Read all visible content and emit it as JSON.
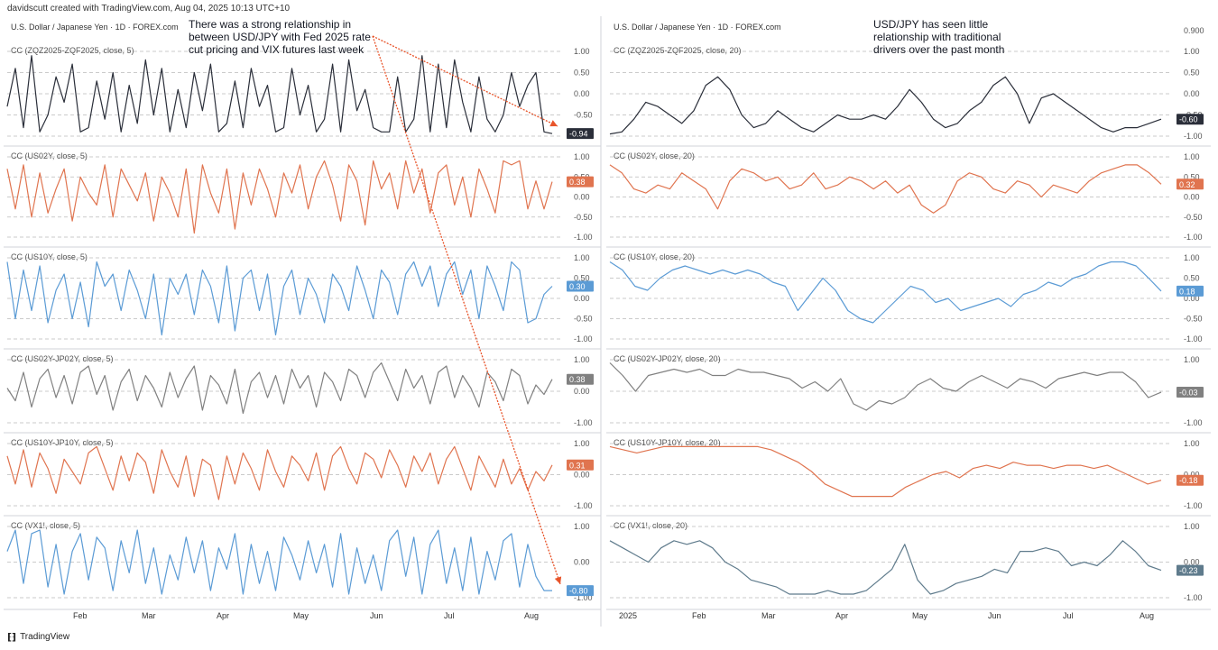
{
  "attribution": "davidscutt created with TradingView.com, Aug 04, 2025 10:13 UTC+10",
  "footer": {
    "brand": "TradingView"
  },
  "annotations": {
    "left": [
      "There was a strong relationship in",
      "between USD/JPY with Fed 2025 rate",
      "cut pricing and VIX futures last week"
    ],
    "right": [
      "USD/JPY has seen little",
      "relationship with traditional",
      "drivers over the past month"
    ]
  },
  "colors": {
    "black": "#2a2e39",
    "orange": "#e0744f",
    "blue": "#5b9bd5",
    "gray": "#808080",
    "steel": "#5f7b8c",
    "arrow": "#e8542a"
  },
  "chart_data": [
    {
      "type": "line",
      "title": "U.S. Dollar / Japanese Yen · 1D · FOREX.com",
      "x_ticks": [
        "Feb",
        "Mar",
        "Apr",
        "May",
        "Jun",
        "Jul",
        "Aug"
      ],
      "panes": [
        {
          "label": "CC (ZQZ2025-ZQF2025, close, 5)",
          "color": "black",
          "last": "-0.94",
          "ticks": [
            "1.00",
            "0.50",
            "0.00",
            "-0.50",
            "-1.00"
          ],
          "ylim": [
            -1,
            1
          ],
          "values": [
            -0.3,
            0.6,
            -0.8,
            0.9,
            -0.9,
            -0.5,
            0.4,
            -0.2,
            0.7,
            -0.9,
            -0.8,
            0.3,
            -0.6,
            0.5,
            -0.9,
            0.2,
            -0.7,
            0.8,
            -0.5,
            0.6,
            -0.9,
            0.1,
            -0.8,
            0.5,
            -0.4,
            0.7,
            -0.9,
            -0.7,
            0.3,
            -0.8,
            0.6,
            -0.3,
            0.2,
            -0.9,
            -0.8,
            0.6,
            -0.5,
            0.2,
            -0.9,
            -0.6,
            0.7,
            -0.9,
            0.8,
            -0.4,
            0.1,
            -0.8,
            -0.9,
            -0.9,
            0.4,
            -0.9,
            -0.6,
            0.9,
            -0.9,
            0.7,
            -0.8,
            0.8,
            -0.2,
            -0.9,
            0.4,
            -0.6,
            -0.9,
            -0.5,
            0.5,
            -0.3,
            0.2,
            0.5,
            -0.9,
            -0.94
          ]
        },
        {
          "label": "CC (US02Y, close, 5)",
          "color": "orange",
          "last": "0.38",
          "ticks": [
            "1.00",
            "0.50",
            "0.00",
            "-0.50",
            "-1.00"
          ],
          "ylim": [
            -1,
            1
          ],
          "values": [
            0.7,
            -0.3,
            0.8,
            -0.5,
            0.6,
            -0.4,
            0.2,
            0.7,
            -0.6,
            0.5,
            0.1,
            -0.2,
            0.8,
            -0.5,
            0.7,
            0.3,
            -0.1,
            0.6,
            -0.6,
            0.5,
            0.1,
            -0.5,
            0.7,
            -0.9,
            0.8,
            0.1,
            -0.4,
            0.7,
            -0.8,
            0.6,
            -0.2,
            0.7,
            0.2,
            -0.5,
            0.6,
            0.1,
            0.8,
            -0.3,
            0.5,
            0.9,
            0.3,
            -0.6,
            0.8,
            0.4,
            -0.7,
            0.9,
            0.2,
            0.6,
            -0.3,
            0.9,
            0.1,
            0.7,
            -0.4,
            0.6,
            0.8,
            -0.2,
            0.5,
            -0.5,
            0.7,
            0.2,
            -0.4,
            0.9,
            0.8,
            0.9,
            -0.3,
            0.4,
            -0.3,
            0.38
          ]
        },
        {
          "label": "CC (US10Y, close, 5)",
          "color": "blue",
          "last": "0.30",
          "ticks": [
            "1.00",
            "0.50",
            "0.00",
            "-0.50",
            "-1.00"
          ],
          "ylim": [
            -1,
            1
          ],
          "values": [
            0.9,
            -0.5,
            0.7,
            -0.3,
            0.8,
            -0.6,
            0.2,
            0.6,
            -0.5,
            0.4,
            -0.7,
            0.9,
            0.3,
            0.6,
            -0.3,
            0.7,
            0.2,
            -0.5,
            0.6,
            -0.9,
            0.5,
            0.1,
            0.6,
            -0.4,
            0.7,
            0.3,
            -0.6,
            0.8,
            -0.8,
            0.5,
            0.7,
            -0.3,
            0.6,
            -0.9,
            0.3,
            0.7,
            -0.4,
            0.5,
            0.1,
            -0.6,
            0.6,
            0.3,
            -0.3,
            0.8,
            0.2,
            -0.5,
            0.7,
            0.4,
            -0.4,
            0.6,
            0.9,
            0.3,
            0.8,
            -0.2,
            0.6,
            0.9,
            0.1,
            0.7,
            -0.5,
            0.8,
            0.3,
            -0.3,
            0.9,
            0.7,
            -0.6,
            -0.5,
            0.1,
            0.3
          ]
        },
        {
          "label": "CC (US02Y-JP02Y, close, 5)",
          "color": "gray",
          "last": "0.38",
          "ticks": [
            "1.00",
            "0.00",
            "-1.00"
          ],
          "ylim": [
            -1,
            1
          ],
          "values": [
            0.1,
            -0.3,
            0.6,
            -0.5,
            0.4,
            0.7,
            -0.2,
            0.5,
            -0.4,
            0.6,
            0.8,
            -0.1,
            0.5,
            -0.6,
            0.3,
            0.7,
            -0.3,
            0.5,
            0.1,
            -0.5,
            0.6,
            -0.2,
            0.4,
            0.8,
            -0.6,
            0.5,
            0.2,
            -0.4,
            0.7,
            -0.7,
            0.3,
            0.6,
            -0.2,
            0.5,
            -0.4,
            0.7,
            0.1,
            0.5,
            -0.5,
            0.6,
            0.3,
            -0.3,
            0.7,
            0.5,
            -0.2,
            0.6,
            0.9,
            0.3,
            -0.3,
            0.7,
            0.1,
            0.5,
            -0.4,
            0.6,
            0.8,
            -0.2,
            0.5,
            0.1,
            -0.5,
            0.6,
            0.3,
            -0.3,
            0.7,
            0.5,
            -0.4,
            0.2,
            -0.1,
            0.38
          ]
        },
        {
          "label": "CC (US10Y-JP10Y, close, 5)",
          "color": "orange",
          "last": "0.31",
          "ticks": [
            "1.00",
            "0.00",
            "-1.00"
          ],
          "ylim": [
            -1,
            1
          ],
          "values": [
            0.6,
            -0.3,
            0.8,
            -0.4,
            0.7,
            0.2,
            -0.6,
            0.5,
            0.1,
            -0.3,
            0.7,
            0.9,
            0.2,
            -0.5,
            0.6,
            -0.2,
            0.7,
            0.4,
            -0.6,
            0.8,
            0.1,
            -0.4,
            0.6,
            -0.7,
            0.5,
            0.3,
            -0.8,
            0.6,
            -0.3,
            0.7,
            0.2,
            -0.5,
            0.8,
            0.1,
            -0.4,
            0.6,
            0.3,
            -0.2,
            0.7,
            -0.5,
            0.6,
            0.9,
            0.2,
            -0.3,
            0.7,
            0.5,
            -0.1,
            0.8,
            0.3,
            -0.4,
            0.6,
            0.1,
            0.7,
            -0.3,
            0.5,
            0.9,
            0.2,
            -0.5,
            0.6,
            0.1,
            -0.4,
            0.5,
            -0.3,
            0.2,
            -0.5,
            0.1,
            -0.2,
            0.31
          ]
        },
        {
          "label": "CC (VX1!, close, 5)",
          "color": "blue",
          "last": "-0.80",
          "ticks": [
            "1.00",
            "0.00",
            "-1.00"
          ],
          "ylim": [
            -1,
            1
          ],
          "values": [
            0.3,
            0.9,
            -0.6,
            0.8,
            0.9,
            -0.7,
            0.5,
            -0.9,
            0.3,
            0.8,
            -0.5,
            0.7,
            0.4,
            -0.8,
            0.6,
            -0.3,
            0.9,
            -0.6,
            0.4,
            -0.9,
            0.2,
            -0.5,
            0.7,
            -0.3,
            0.6,
            -0.8,
            0.4,
            -0.2,
            0.8,
            -0.9,
            0.5,
            -0.6,
            0.3,
            -0.8,
            0.7,
            0.2,
            -0.5,
            0.6,
            -0.3,
            0.5,
            -0.7,
            0.8,
            -0.9,
            0.4,
            -0.6,
            0.2,
            -0.8,
            0.6,
            0.9,
            -0.4,
            0.7,
            -0.9,
            0.5,
            0.9,
            -0.6,
            0.4,
            -0.8,
            0.7,
            -0.9,
            0.3,
            -0.5,
            0.6,
            0.8,
            -0.7,
            0.5,
            -0.4,
            -0.8,
            -0.8
          ]
        }
      ]
    },
    {
      "type": "line",
      "title": "U.S. Dollar / Japanese Yen · 1D · FOREX.com",
      "top_tick": "0.900",
      "x_ticks": [
        "2025",
        "Feb",
        "Mar",
        "Apr",
        "May",
        "Jun",
        "Jul",
        "Aug"
      ],
      "panes": [
        {
          "label": "CC (ZQZ2025-ZQF2025, close, 20)",
          "color": "black",
          "last": "-0.60",
          "ticks": [
            "1.00",
            "0.50",
            "0.00",
            "-0.50",
            "-1.00"
          ],
          "ylim": [
            -1,
            1
          ],
          "values": [
            -0.95,
            -0.9,
            -0.6,
            -0.2,
            -0.3,
            -0.5,
            -0.7,
            -0.4,
            0.2,
            0.4,
            0.1,
            -0.5,
            -0.8,
            -0.7,
            -0.4,
            -0.6,
            -0.8,
            -0.9,
            -0.7,
            -0.5,
            -0.6,
            -0.6,
            -0.5,
            -0.6,
            -0.3,
            0.1,
            -0.2,
            -0.6,
            -0.8,
            -0.7,
            -0.4,
            -0.2,
            0.2,
            0.4,
            0.0,
            -0.7,
            -0.1,
            0.0,
            -0.2,
            -0.4,
            -0.6,
            -0.8,
            -0.9,
            -0.8,
            -0.8,
            -0.7,
            -0.6
          ]
        },
        {
          "label": "CC (US02Y, close, 20)",
          "color": "orange",
          "last": "0.32",
          "ticks": [
            "1.00",
            "0.50",
            "0.00",
            "-0.50",
            "-1.00"
          ],
          "ylim": [
            -1,
            1
          ],
          "values": [
            0.8,
            0.6,
            0.2,
            0.1,
            0.3,
            0.2,
            0.6,
            0.4,
            0.2,
            -0.3,
            0.4,
            0.7,
            0.6,
            0.4,
            0.5,
            0.2,
            0.3,
            0.6,
            0.2,
            0.3,
            0.5,
            0.4,
            0.2,
            0.4,
            0.1,
            0.3,
            -0.2,
            -0.4,
            -0.2,
            0.4,
            0.6,
            0.5,
            0.2,
            0.1,
            0.4,
            0.3,
            0.0,
            0.3,
            0.2,
            0.1,
            0.4,
            0.6,
            0.7,
            0.8,
            0.8,
            0.6,
            0.32
          ]
        },
        {
          "label": "CC (US10Y, close, 20)",
          "color": "blue",
          "last": "0.18",
          "ticks": [
            "1.00",
            "0.50",
            "0.00",
            "-0.50",
            "-1.00"
          ],
          "ylim": [
            -1,
            1
          ],
          "values": [
            0.9,
            0.7,
            0.3,
            0.2,
            0.5,
            0.7,
            0.8,
            0.7,
            0.6,
            0.7,
            0.6,
            0.7,
            0.6,
            0.4,
            0.3,
            -0.3,
            0.1,
            0.5,
            0.2,
            -0.3,
            -0.5,
            -0.6,
            -0.3,
            0.0,
            0.3,
            0.2,
            -0.1,
            0.0,
            -0.3,
            -0.2,
            -0.1,
            0.0,
            -0.2,
            0.1,
            0.2,
            0.4,
            0.3,
            0.5,
            0.6,
            0.8,
            0.9,
            0.9,
            0.8,
            0.5,
            0.18
          ]
        },
        {
          "label": "CC (US02Y-JP02Y, close, 20)",
          "color": "gray",
          "last": "-0.03",
          "ticks": [
            "1.00",
            "0.00",
            "-1.00"
          ],
          "ylim": [
            -1,
            1
          ],
          "values": [
            0.9,
            0.5,
            0.0,
            0.5,
            0.6,
            0.7,
            0.6,
            0.7,
            0.5,
            0.5,
            0.7,
            0.6,
            0.6,
            0.5,
            0.4,
            0.1,
            0.3,
            0.0,
            0.4,
            -0.4,
            -0.6,
            -0.3,
            -0.4,
            -0.2,
            0.2,
            0.4,
            0.1,
            0.0,
            0.3,
            0.5,
            0.3,
            0.1,
            0.4,
            0.3,
            0.1,
            0.4,
            0.5,
            0.6,
            0.5,
            0.6,
            0.6,
            0.3,
            -0.2,
            -0.03
          ]
        },
        {
          "label": "CC (US10Y-JP10Y, close, 20)",
          "color": "orange",
          "last": "-0.18",
          "ticks": [
            "1.00",
            "0.00",
            "-1.00"
          ],
          "ylim": [
            -1,
            1
          ],
          "values": [
            0.9,
            0.8,
            0.7,
            0.8,
            0.9,
            0.9,
            0.9,
            0.9,
            0.9,
            0.9,
            0.9,
            0.9,
            0.8,
            0.6,
            0.4,
            0.1,
            -0.3,
            -0.5,
            -0.7,
            -0.7,
            -0.7,
            -0.7,
            -0.4,
            -0.2,
            0.0,
            0.1,
            -0.1,
            0.2,
            0.3,
            0.2,
            0.4,
            0.3,
            0.3,
            0.2,
            0.3,
            0.3,
            0.2,
            0.3,
            0.1,
            -0.1,
            -0.3,
            -0.18
          ]
        },
        {
          "label": "CC (VX1!, close, 20)",
          "color": "steel",
          "last": "-0.23",
          "ticks": [
            "1.00",
            "0.00",
            "-1.00"
          ],
          "ylim": [
            -1,
            1
          ],
          "values": [
            0.6,
            0.4,
            0.2,
            0.0,
            0.4,
            0.6,
            0.5,
            0.6,
            0.4,
            0.0,
            -0.2,
            -0.5,
            -0.6,
            -0.7,
            -0.9,
            -0.9,
            -0.9,
            -0.8,
            -0.9,
            -0.9,
            -0.8,
            -0.5,
            -0.2,
            0.5,
            -0.5,
            -0.9,
            -0.8,
            -0.6,
            -0.5,
            -0.4,
            -0.2,
            -0.3,
            0.3,
            0.3,
            0.4,
            0.3,
            -0.1,
            0.0,
            -0.1,
            0.2,
            0.6,
            0.3,
            -0.1,
            -0.23
          ]
        }
      ]
    }
  ]
}
